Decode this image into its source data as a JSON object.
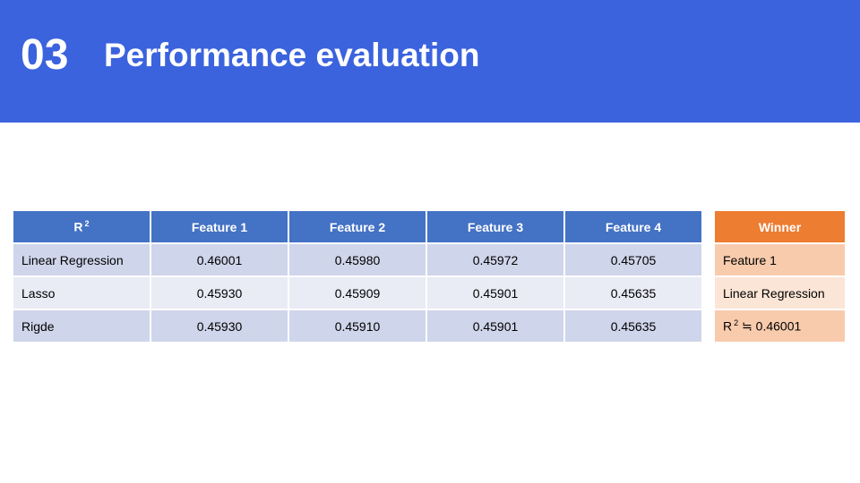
{
  "header": {
    "number": "03",
    "title": "Performance evaluation",
    "background_color": "#3b63de"
  },
  "main_table": {
    "header_corner": "R",
    "header_corner_sup": "2",
    "columns": [
      "Feature 1",
      "Feature 2",
      "Feature 3",
      "Feature 4"
    ],
    "rows": [
      {
        "label": "Linear Regression",
        "values": [
          "0.46001",
          "0.45980",
          "0.45972",
          "0.45705"
        ]
      },
      {
        "label": "Lasso",
        "values": [
          "0.45930",
          "0.45909",
          "0.45901",
          "0.45635"
        ]
      },
      {
        "label": "Rigde",
        "values": [
          "0.45930",
          "0.45910",
          "0.45901",
          "0.45635"
        ]
      }
    ],
    "header_color": "#4472c4",
    "row_colors": [
      "#cfd5ea",
      "#e9ebf5"
    ]
  },
  "winner_table": {
    "header": "Winner",
    "rows": [
      "Feature 1",
      "Linear Regression",
      "R ≒ 0.46001"
    ],
    "r_prefix": "R",
    "r_sup": "2",
    "r_rest": "≒ 0.46001",
    "header_color": "#ed7d31",
    "row_colors": [
      "#f8cbad",
      "#fbe5d6"
    ]
  }
}
